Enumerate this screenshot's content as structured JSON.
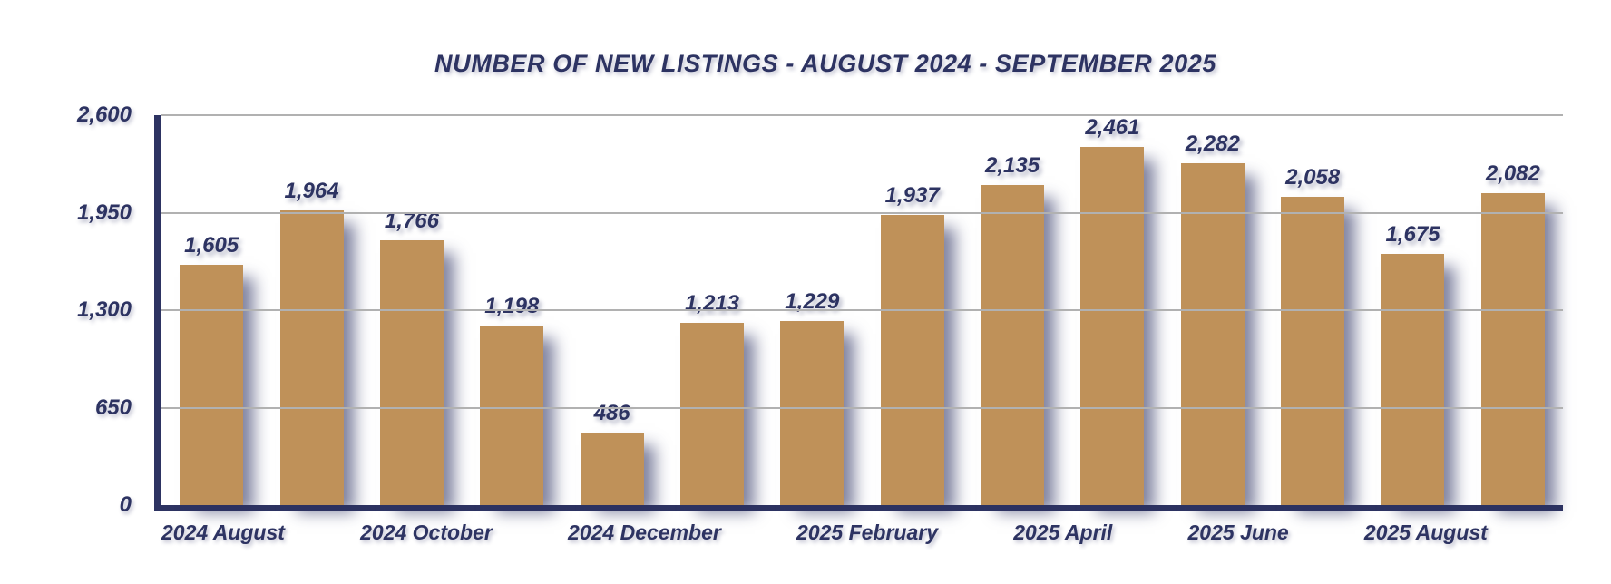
{
  "title": "NUMBER OF NEW LISTINGS - AUGUST 2024 - SEPTEMBER 2025",
  "colors": {
    "bar": "#bf9159",
    "axis": "#2d3362",
    "text": "#2d3362",
    "gridline": "#b1b1b1",
    "background": "#ffffff",
    "shadow": "rgba(43,49,96,0.6)"
  },
  "chart_data": {
    "type": "bar",
    "title": "NUMBER OF NEW LISTINGS - AUGUST 2024 - SEPTEMBER 2025",
    "categories": [
      "2024 August",
      "",
      "2024 October",
      "",
      "2024 December",
      "",
      "2025 February",
      "",
      "2025 April",
      "",
      "2025 June",
      "",
      "2025 August",
      ""
    ],
    "values": [
      1605,
      1964,
      1766,
      1198,
      486,
      1213,
      1229,
      1937,
      2135,
      2461,
      2282,
      2058,
      1675,
      2082
    ],
    "value_labels": [
      "1,605",
      "1,964",
      "1,766",
      "1,198",
      "486",
      "1,213",
      "1,229",
      "1,937",
      "2,135",
      "2,461",
      "2,282",
      "2,058",
      "1,675",
      "2,082"
    ],
    "xlabel": "",
    "ylabel": "",
    "ylim": [
      0,
      2600
    ],
    "y_ticks": [
      {
        "value": 0,
        "label": "0"
      },
      {
        "value": 650,
        "label": "650"
      },
      {
        "value": 1300,
        "label": "1,300"
      },
      {
        "value": 1950,
        "label": "1,950"
      },
      {
        "value": 2600,
        "label": "2,600"
      }
    ],
    "grid": true,
    "legend": false
  }
}
